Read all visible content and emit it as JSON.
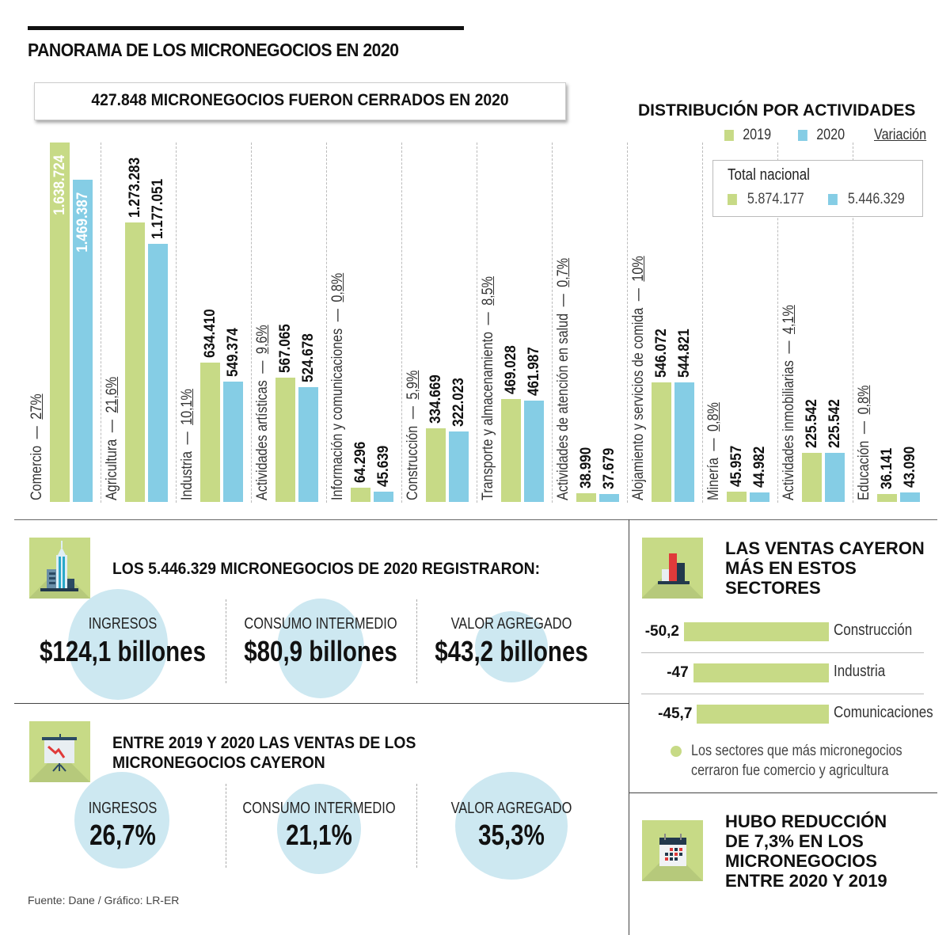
{
  "header": {
    "title": "PANORAMA DE LOS MICRONEGOCIOS EN 2020",
    "closed_banner": "427.848 MICRONEGOCIOS FUERON CERRADOS EN 2020"
  },
  "colors": {
    "y2019": "#c7da86",
    "y2020": "#85cde5",
    "circle": "#cde8f1"
  },
  "chart_data": {
    "type": "bar",
    "title": "DISTRIBUCIÓN POR ACTIVIDADES",
    "legend": {
      "y2019": "2019",
      "y2020": "2020",
      "variation": "Variación",
      "placement": "top-right"
    },
    "total": {
      "title": "Total nacional",
      "y2019": "5.874.177",
      "y2020": "5.446.329"
    },
    "ylim": [
      0,
      1638724
    ],
    "categories": [
      {
        "name": "Comercio",
        "variation": "27%",
        "v2019": 1638724,
        "v2020": 1469387,
        "l2019": "1.638.724",
        "l2020": "1.469.387"
      },
      {
        "name": "Agricultura",
        "variation": "21,6%",
        "v2019": 1273283,
        "v2020": 1177051,
        "l2019": "1.273.283",
        "l2020": "1.177.051"
      },
      {
        "name": "Industria",
        "variation": "10,1%",
        "v2019": 634410,
        "v2020": 549374,
        "l2019": "634.410",
        "l2020": "549.374"
      },
      {
        "name": "Actividades artísticas",
        "variation": "9,6%",
        "v2019": 567065,
        "v2020": 524678,
        "l2019": "567.065",
        "l2020": "524.678"
      },
      {
        "name": "Información y comunicaciones",
        "variation": "0,8%",
        "v2019": 64296,
        "v2020": 45639,
        "l2019": "64.296",
        "l2020": "45.639"
      },
      {
        "name": "Construcción",
        "variation": "5,9%",
        "v2019": 334669,
        "v2020": 322023,
        "l2019": "334.669",
        "l2020": "322.023"
      },
      {
        "name": "Transporte y almacenamiento",
        "variation": "8,5%",
        "v2019": 469028,
        "v2020": 461987,
        "l2019": "469.028",
        "l2020": "461.987"
      },
      {
        "name": "Actividades de atención en salud",
        "variation": "0,7%",
        "v2019": 38990,
        "v2020": 37679,
        "l2019": "38.990",
        "l2020": "37.679"
      },
      {
        "name": "Alojamiento y servicios de comida",
        "variation": "10%",
        "v2019": 546072,
        "v2020": 544821,
        "l2019": "546.072",
        "l2020": "544.821"
      },
      {
        "name": "Minería",
        "variation": "0,8%",
        "v2019": 45957,
        "v2020": 44982,
        "l2019": "45.957",
        "l2020": "44.982"
      },
      {
        "name": "Actividades inmobiliarias",
        "variation": "4,1%",
        "v2019": 225542,
        "v2020": 225542,
        "l2019": "225.542",
        "l2020": "225.542"
      },
      {
        "name": "Educación",
        "variation": "0,8%",
        "v2019": 36141,
        "v2020": 43090,
        "l2019": "36.141",
        "l2020": "43.090"
      }
    ]
  },
  "registered": {
    "title": "LOS 5.446.329 MICRONEGOCIOS DE 2020 REGISTRARON:",
    "icon": "building-icon",
    "stats": [
      {
        "label": "INGRESOS",
        "value": "$124,1 billones"
      },
      {
        "label": "CONSUMO INTERMEDIO",
        "value": "$80,9 billones"
      },
      {
        "label": "VALOR AGREGADO",
        "value": "$43,2 billones"
      }
    ]
  },
  "decline": {
    "title_line1": "ENTRE 2019 Y 2020 LAS VENTAS DE LOS",
    "title_line2": "MICRONEGOCIOS CAYERON",
    "icon": "presentation-chart-down-icon",
    "stats": [
      {
        "label": "INGRESOS",
        "value": "26,7%"
      },
      {
        "label": "CONSUMO INTERMEDIO",
        "value": "21,1%"
      },
      {
        "label": "VALOR AGREGADO",
        "value": "35,3%"
      }
    ]
  },
  "sales_drop": {
    "title_line1": "LAS VENTAS CAYERON",
    "title_line2": "MÁS EN ESTOS",
    "title_line3": "SECTORES",
    "icon": "bar-chart-icon",
    "sectors": [
      {
        "value": "-50,2",
        "num": -50.2,
        "label": "Construcción"
      },
      {
        "value": "-47",
        "num": -47,
        "label": "Industria"
      },
      {
        "value": "-45,7",
        "num": -45.7,
        "label": "Comunicaciones"
      }
    ],
    "note_line1": "Los sectores que más micronegocios",
    "note_line2": "cerraron fue comercio y agricultura"
  },
  "reduction": {
    "title_line1": "HUBO REDUCCIÓN",
    "title_line2": "DE 7,3% EN LOS",
    "title_line3": "MICRONEGOCIOS",
    "title_line4": "ENTRE 2020 Y 2019",
    "icon": "calendar-icon"
  },
  "source": "Fuente: Dane / Gráfico: LR-ER"
}
